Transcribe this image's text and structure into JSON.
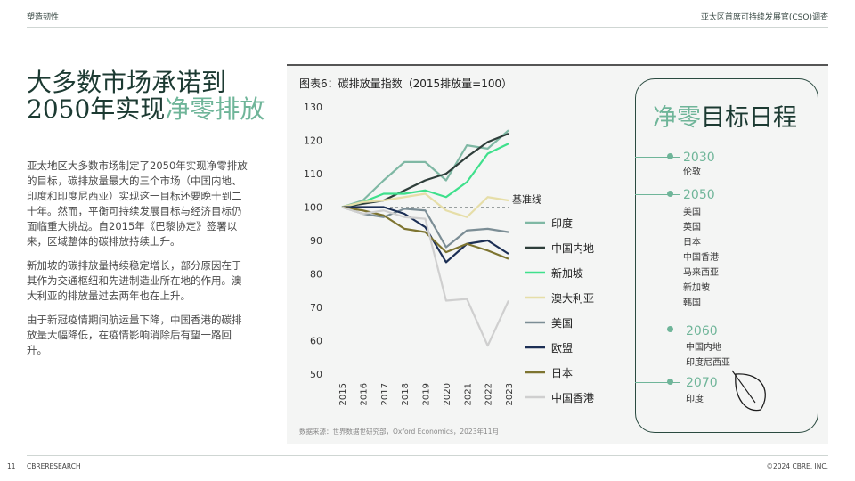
{
  "header": {
    "left": "塑造韧性",
    "right": "亚太区首席可持续发展官(CSO)调查"
  },
  "title": {
    "line1": "大多数市场承诺到",
    "line2_plain": "2050年实现",
    "line2_accent": "净零排放"
  },
  "body": [
    "亚太地区大多数市场制定了2050年实现净零排放的目标，碳排放量最大的三个市场（中国内地、印度和印度尼西亚）实现这一目标还要晚十到二十年。然而，平衡可持续发展目标与经济目标仍面临重大挑战。自2015年《巴黎协定》签署以来，区域整体的碳排放持续上升。",
    "新加坡的碳排放量持续稳定增长，部分原因在于其作为交通枢纽和先进制造业所在地的作用。澳大利亚的排放量过去两年也在上升。",
    "由于新冠疫情期间航运量下降，中国香港的碳排放量大幅降低，在疫情影响消除后有望一路回升。"
  ],
  "chart_data": {
    "type": "line",
    "title": "图表6：碳排放量指数（2015排放量=100）",
    "x": [
      "2015",
      "2016",
      "2017",
      "2018",
      "2019",
      "2020",
      "2021",
      "2022",
      "2023"
    ],
    "ylim": [
      50,
      130
    ],
    "yticks": [
      50,
      60,
      70,
      80,
      90,
      100,
      110,
      120,
      130
    ],
    "baseline": {
      "value": 100,
      "label": "基准线"
    },
    "series": [
      {
        "name": "印度",
        "color": "#7fb8a4",
        "values": [
          100,
          102,
          108,
          113.5,
          113.5,
          108,
          118.5,
          117.5,
          123
        ]
      },
      {
        "name": "中国内地",
        "color": "#2e3e3a",
        "values": [
          100,
          101,
          102,
          105,
          108,
          110,
          115,
          119.5,
          122
        ]
      },
      {
        "name": "新加坡",
        "color": "#3fe08c",
        "values": [
          100,
          101.5,
          104,
          104,
          105,
          103,
          107.5,
          116,
          119
        ]
      },
      {
        "name": "澳大利亚",
        "color": "#e6dea8",
        "values": [
          100,
          101.5,
          102,
          103,
          104,
          99,
          97,
          103,
          102
        ]
      },
      {
        "name": "美国",
        "color": "#7b8d95",
        "values": [
          100,
          98,
          97,
          99.5,
          99,
          88,
          93,
          93.5,
          92.5
        ]
      },
      {
        "name": "欧盟",
        "color": "#1c2f55",
        "values": [
          100,
          100,
          100,
          98,
          94,
          83.5,
          89,
          90,
          86
        ]
      },
      {
        "name": "日本",
        "color": "#7d7430",
        "values": [
          100,
          99,
          97.5,
          93.5,
          92.5,
          86.5,
          89,
          87,
          84.5
        ]
      },
      {
        "name": "中国香港",
        "color": "#cfcfcf",
        "values": [
          100,
          98,
          99,
          97,
          96.5,
          72,
          72.5,
          58.5,
          72
        ]
      }
    ]
  },
  "source": "数据来源：世界数据世研究部，Oxford Economics，2023年11月",
  "targets": {
    "title_accent": "净零",
    "title_plain": "目标日程",
    "groups": [
      {
        "year": "2030",
        "countries": [
          "伦敦"
        ]
      },
      {
        "year": "2050",
        "countries": [
          "美国",
          "英国",
          "日本",
          "中国香港",
          "马来西亚",
          "新加坡",
          "韩国"
        ]
      },
      {
        "year": "2060",
        "countries": [
          "中国内地",
          "印度尼西亚"
        ]
      },
      {
        "year": "2070",
        "countries": [
          "印度"
        ]
      }
    ]
  },
  "footer": {
    "page": "11",
    "left": "CBRERESEARCH",
    "right": "©2024 CBRE, INC."
  }
}
